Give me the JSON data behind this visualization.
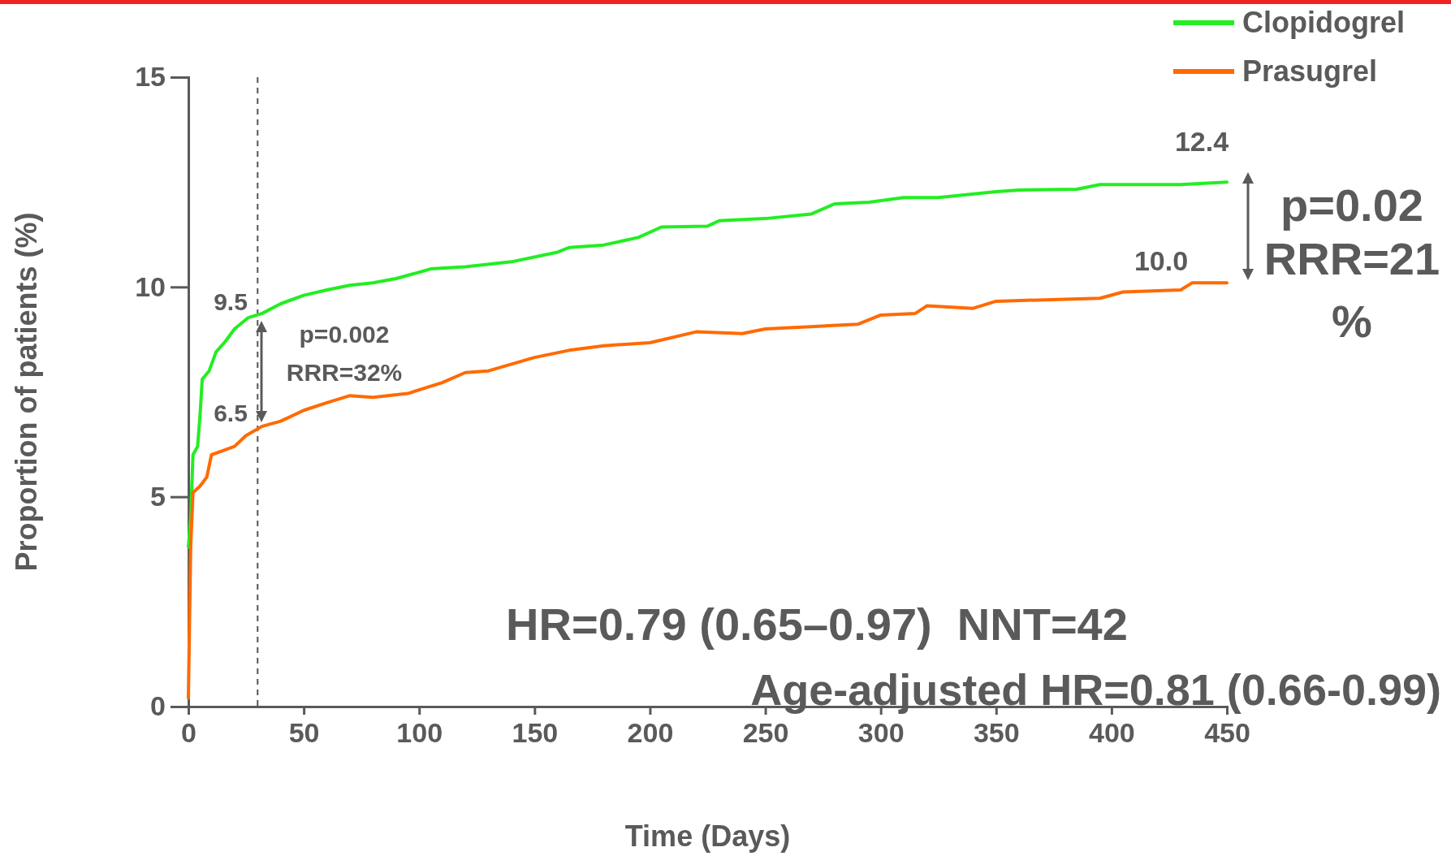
{
  "chart_data": {
    "type": "line",
    "xlabel": "Time (Days)",
    "ylabel": "Proportion of patients (%)",
    "xlim": [
      0,
      450
    ],
    "xticks": [
      0,
      50,
      100,
      150,
      200,
      250,
      300,
      350,
      400,
      450
    ],
    "ylim": [
      0,
      15
    ],
    "yticks": [
      0,
      5,
      10,
      15
    ],
    "legend": "top right",
    "grid": false,
    "series": [
      {
        "name": "Clopidogrel",
        "color": "#22ee22",
        "x": [
          0,
          1,
          2,
          4,
          5,
          6,
          9,
          12,
          16,
          20,
          26,
          32,
          40,
          50,
          60,
          70,
          80,
          90,
          100,
          105,
          120,
          140,
          160,
          165,
          180,
          195,
          205,
          225,
          230,
          250,
          270,
          280,
          295,
          310,
          325,
          350,
          360,
          385,
          395,
          430,
          450
        ],
        "values": [
          3.8,
          4.5,
          6.0,
          6.2,
          6.9,
          7.8,
          8.0,
          8.45,
          8.7,
          9.0,
          9.27,
          9.37,
          9.6,
          9.8,
          9.93,
          10.04,
          10.1,
          10.2,
          10.35,
          10.43,
          10.48,
          10.6,
          10.83,
          10.94,
          11.0,
          11.18,
          11.43,
          11.45,
          11.58,
          11.63,
          11.74,
          11.98,
          12.02,
          12.13,
          12.13,
          12.27,
          12.31,
          12.33,
          12.44,
          12.44,
          12.5
        ]
      },
      {
        "name": "Prasugrel",
        "color": "#ff6a00",
        "x": [
          0,
          1,
          2,
          5,
          8,
          10,
          15,
          20,
          25,
          32,
          40,
          50,
          60,
          70,
          80,
          95,
          110,
          120,
          130,
          140,
          150,
          165,
          180,
          200,
          220,
          240,
          250,
          275,
          290,
          300,
          315,
          320,
          340,
          350,
          395,
          405,
          430,
          435,
          450
        ],
        "values": [
          0.2,
          3.8,
          5.1,
          5.25,
          5.47,
          6.0,
          6.1,
          6.2,
          6.46,
          6.68,
          6.8,
          7.06,
          7.24,
          7.41,
          7.37,
          7.46,
          7.72,
          7.96,
          8.0,
          8.16,
          8.32,
          8.49,
          8.6,
          8.67,
          8.93,
          8.89,
          9.0,
          9.07,
          9.11,
          9.33,
          9.37,
          9.55,
          9.49,
          9.66,
          9.73,
          9.88,
          9.93,
          10.1,
          10.1
        ]
      }
    ],
    "ref_lines": [
      {
        "axis": "x",
        "value": 30,
        "color": "#555555",
        "line_style": "dashed"
      }
    ],
    "annotations": [
      "9.5",
      "6.5",
      "12.4",
      "10.0",
      "p=0.002",
      "RRR=32%",
      "p=0.02",
      "RRR=21",
      "%",
      "HR=0.79 (0.65–0.97)  NNT=42",
      "Age-adjusted HR=0.81 (0.66-0.99)"
    ]
  }
}
